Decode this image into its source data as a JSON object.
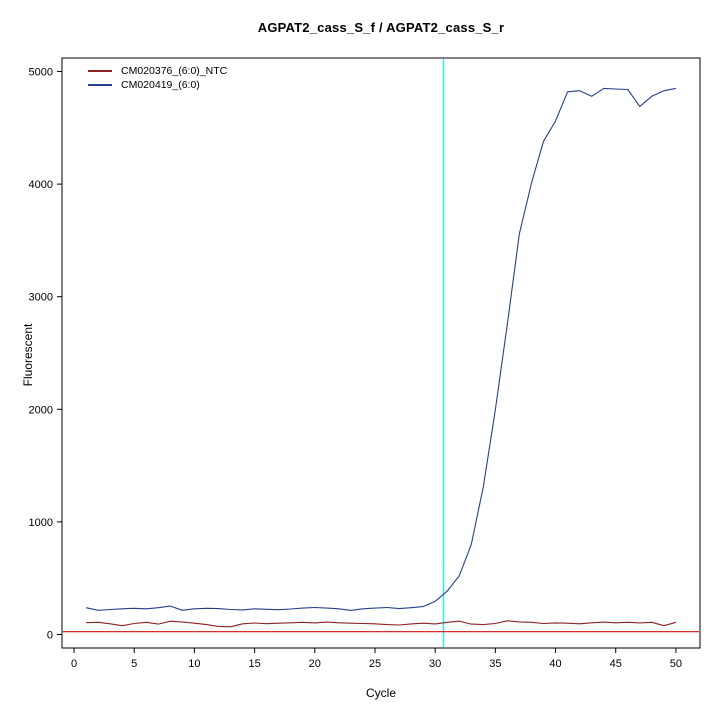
{
  "chart_data": {
    "type": "line",
    "title": "AGPAT2_cass_S_f / AGPAT2_cass_S_r",
    "xlabel": "Cycle",
    "ylabel": "Fluorescent",
    "xlim": [
      -1,
      52
    ],
    "ylim": [
      -120,
      5120
    ],
    "xticks": [
      0,
      5,
      10,
      15,
      20,
      25,
      30,
      35,
      40,
      45,
      50
    ],
    "yticks": [
      0,
      1000,
      2000,
      3000,
      4000,
      5000
    ],
    "grid": false,
    "legend_position": "top-left",
    "threshold_vline": {
      "x": 30.7,
      "color": "#00ffff"
    },
    "baseline_hline": {
      "y": 25,
      "color": "#cc1111"
    },
    "x": [
      1,
      2,
      3,
      4,
      5,
      6,
      7,
      8,
      9,
      10,
      11,
      12,
      13,
      14,
      15,
      16,
      17,
      18,
      19,
      20,
      21,
      22,
      23,
      24,
      25,
      26,
      27,
      28,
      29,
      30,
      31,
      32,
      33,
      34,
      35,
      36,
      37,
      38,
      39,
      40,
      41,
      42,
      43,
      44,
      45,
      46,
      47,
      48,
      49,
      50
    ],
    "series": [
      {
        "name": "CM020376_(6:0)_NTC",
        "color": "#8b2323",
        "values": [
          105,
          108,
          95,
          78,
          98,
          108,
          92,
          118,
          110,
          100,
          88,
          72,
          68,
          95,
          102,
          96,
          100,
          104,
          108,
          103,
          110,
          104,
          100,
          98,
          95,
          88,
          84,
          94,
          100,
          94,
          108,
          118,
          92,
          88,
          98,
          122,
          112,
          108,
          98,
          103,
          100,
          95,
          104,
          110,
          104,
          108,
          103,
          108,
          78,
          108
        ]
      },
      {
        "name": "CM020419_(6:0)",
        "color": "#27408b",
        "values": [
          238,
          215,
          222,
          228,
          233,
          228,
          238,
          252,
          215,
          228,
          233,
          230,
          222,
          218,
          228,
          224,
          220,
          226,
          234,
          240,
          234,
          228,
          214,
          228,
          234,
          240,
          230,
          238,
          248,
          295,
          385,
          520,
          800,
          1310,
          2000,
          2760,
          3560,
          4010,
          4380,
          4560,
          4820,
          4830,
          4780,
          4850,
          4845,
          4840,
          4690,
          4780,
          4830,
          4850
        ]
      }
    ]
  }
}
